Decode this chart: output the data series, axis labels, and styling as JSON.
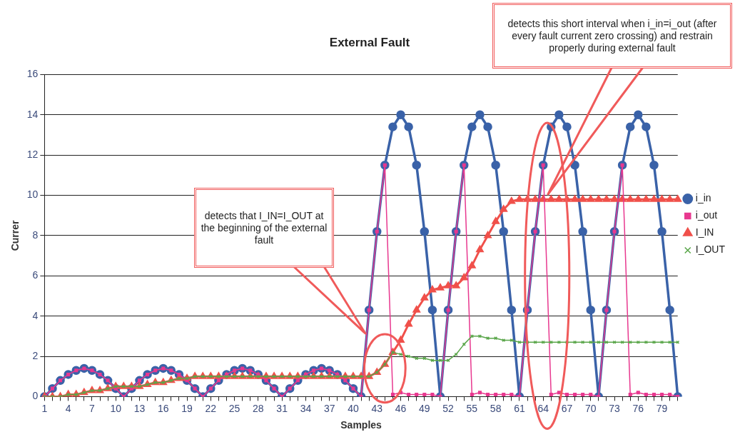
{
  "chart_data": {
    "type": "line",
    "title": "External Fault",
    "xlabel": "Samples",
    "ylabel": "Currer",
    "categories": [
      "1",
      null,
      null,
      "4",
      null,
      null,
      "7",
      null,
      null,
      "10",
      null,
      null,
      "13",
      null,
      null,
      "16",
      null,
      null,
      "19",
      null,
      null,
      "22",
      null,
      null,
      "25",
      null,
      null,
      "28",
      null,
      null,
      "31",
      null,
      null,
      "34",
      null,
      null,
      "37",
      null,
      null,
      "40",
      null,
      null,
      "43",
      null,
      null,
      "46",
      null,
      null,
      "49",
      null,
      null,
      "52",
      null,
      null,
      "55",
      null,
      null,
      "58",
      null,
      null,
      "61",
      null,
      null,
      "64",
      null,
      null,
      "67",
      null,
      null,
      "70",
      null,
      null,
      "73",
      null,
      null,
      "76",
      null,
      null,
      "79",
      null,
      null
    ],
    "series": [
      {
        "name": "i_in",
        "color": "#3a62a8",
        "marker": "circle",
        "values": [
          0,
          0.4,
          0.8,
          1.1,
          1.3,
          1.4,
          1.3,
          1.1,
          0.8,
          0.4,
          0,
          0.4,
          0.8,
          1.1,
          1.3,
          1.4,
          1.3,
          1.1,
          0.8,
          0.4,
          0,
          0.4,
          0.8,
          1.1,
          1.3,
          1.4,
          1.3,
          1.1,
          0.8,
          0.4,
          0,
          0.4,
          0.8,
          1.1,
          1.3,
          1.4,
          1.3,
          1.1,
          0.8,
          0.4,
          0,
          4.3,
          8.2,
          11.5,
          13.4,
          14,
          13.4,
          11.5,
          8.2,
          4.3,
          0,
          4.3,
          8.2,
          11.5,
          13.4,
          14,
          13.4,
          11.5,
          8.2,
          4.3,
          0,
          4.3,
          8.2,
          11.5,
          13.4,
          14,
          13.4,
          11.5,
          8.2,
          4.3,
          0,
          4.3,
          8.2,
          11.5,
          13.4,
          14,
          13.4,
          11.5,
          8.2,
          4.3,
          0
        ]
      },
      {
        "name": "i_out",
        "color": "#e8388f",
        "marker": "square",
        "values": [
          0,
          0.4,
          0.8,
          1.1,
          1.3,
          1.4,
          1.3,
          1.1,
          0.8,
          0.4,
          0,
          0.4,
          0.8,
          1.1,
          1.3,
          1.4,
          1.3,
          1.1,
          0.8,
          0.4,
          0,
          0.4,
          0.8,
          1.1,
          1.3,
          1.4,
          1.3,
          1.1,
          0.8,
          0.4,
          0,
          0.4,
          0.8,
          1.1,
          1.3,
          1.4,
          1.3,
          1.1,
          0.8,
          0.4,
          0,
          4.3,
          8.2,
          11.5,
          0.1,
          0.2,
          0.1,
          0.1,
          0.1,
          0.1,
          0,
          4.3,
          8.2,
          11.5,
          0.1,
          0.2,
          0.1,
          0.1,
          0.1,
          0.1,
          0,
          4.3,
          8.2,
          11.5,
          0.1,
          0.2,
          0.1,
          0.1,
          0.1,
          0.1,
          0,
          4.3,
          8.2,
          11.5,
          0.1,
          0.2,
          0.1,
          0.1,
          0.1,
          0.1,
          0
        ]
      },
      {
        "name": "I_IN",
        "color": "#f0504a",
        "marker": "triangle",
        "values": [
          0,
          0,
          0,
          0.1,
          0.1,
          0.2,
          0.3,
          0.3,
          0.4,
          0.5,
          0.5,
          0.5,
          0.5,
          0.6,
          0.7,
          0.7,
          0.8,
          0.9,
          0.9,
          1,
          1,
          1,
          1,
          1,
          1,
          1,
          1,
          1,
          1,
          1,
          1,
          1,
          1,
          1,
          1,
          1,
          1,
          1,
          1,
          1,
          1,
          1,
          1.2,
          1.6,
          2.2,
          2.8,
          3.6,
          4.3,
          4.9,
          5.3,
          5.4,
          5.5,
          5.5,
          5.9,
          6.5,
          7.3,
          8.0,
          8.7,
          9.3,
          9.7,
          9.8,
          9.8,
          9.8,
          9.8,
          9.8,
          9.8,
          9.8,
          9.8,
          9.8,
          9.8,
          9.8,
          9.8,
          9.8,
          9.8,
          9.8,
          9.8,
          9.8,
          9.8,
          9.8,
          9.8,
          9.8
        ]
      },
      {
        "name": "I_OUT",
        "color": "#5aa64a",
        "marker": "cross",
        "values": [
          0,
          0,
          0,
          0.1,
          0.1,
          0.2,
          0.3,
          0.3,
          0.4,
          0.5,
          0.5,
          0.5,
          0.5,
          0.6,
          0.7,
          0.7,
          0.8,
          0.9,
          0.9,
          1,
          1,
          1,
          1,
          1,
          1,
          1,
          1,
          1,
          1,
          1,
          1,
          1,
          1,
          1,
          1,
          1,
          1,
          1,
          1,
          1,
          1,
          1,
          1.2,
          1.6,
          2.2,
          2.1,
          2.0,
          1.9,
          1.9,
          1.8,
          1.8,
          1.8,
          2.1,
          2.6,
          3.0,
          3.0,
          2.9,
          2.9,
          2.8,
          2.8,
          2.7,
          2.7,
          2.7,
          2.7,
          2.7,
          2.7,
          2.7,
          2.7,
          2.7,
          2.7,
          2.7,
          2.7,
          2.7,
          2.7,
          2.7,
          2.7,
          2.7,
          2.7,
          2.7,
          2.7,
          2.7
        ]
      }
    ],
    "ylim": [
      0,
      16
    ],
    "yticks": [
      0,
      2,
      4,
      6,
      8,
      10,
      12,
      14,
      16
    ],
    "grid": "y",
    "legend": "right",
    "annotations": [
      "detects that I_IN=I_OUT at the beginning of the external fault",
      "detects this short interval when i_in=i_out (after every fault current zero crossing) and restrain properly during external fault"
    ]
  }
}
